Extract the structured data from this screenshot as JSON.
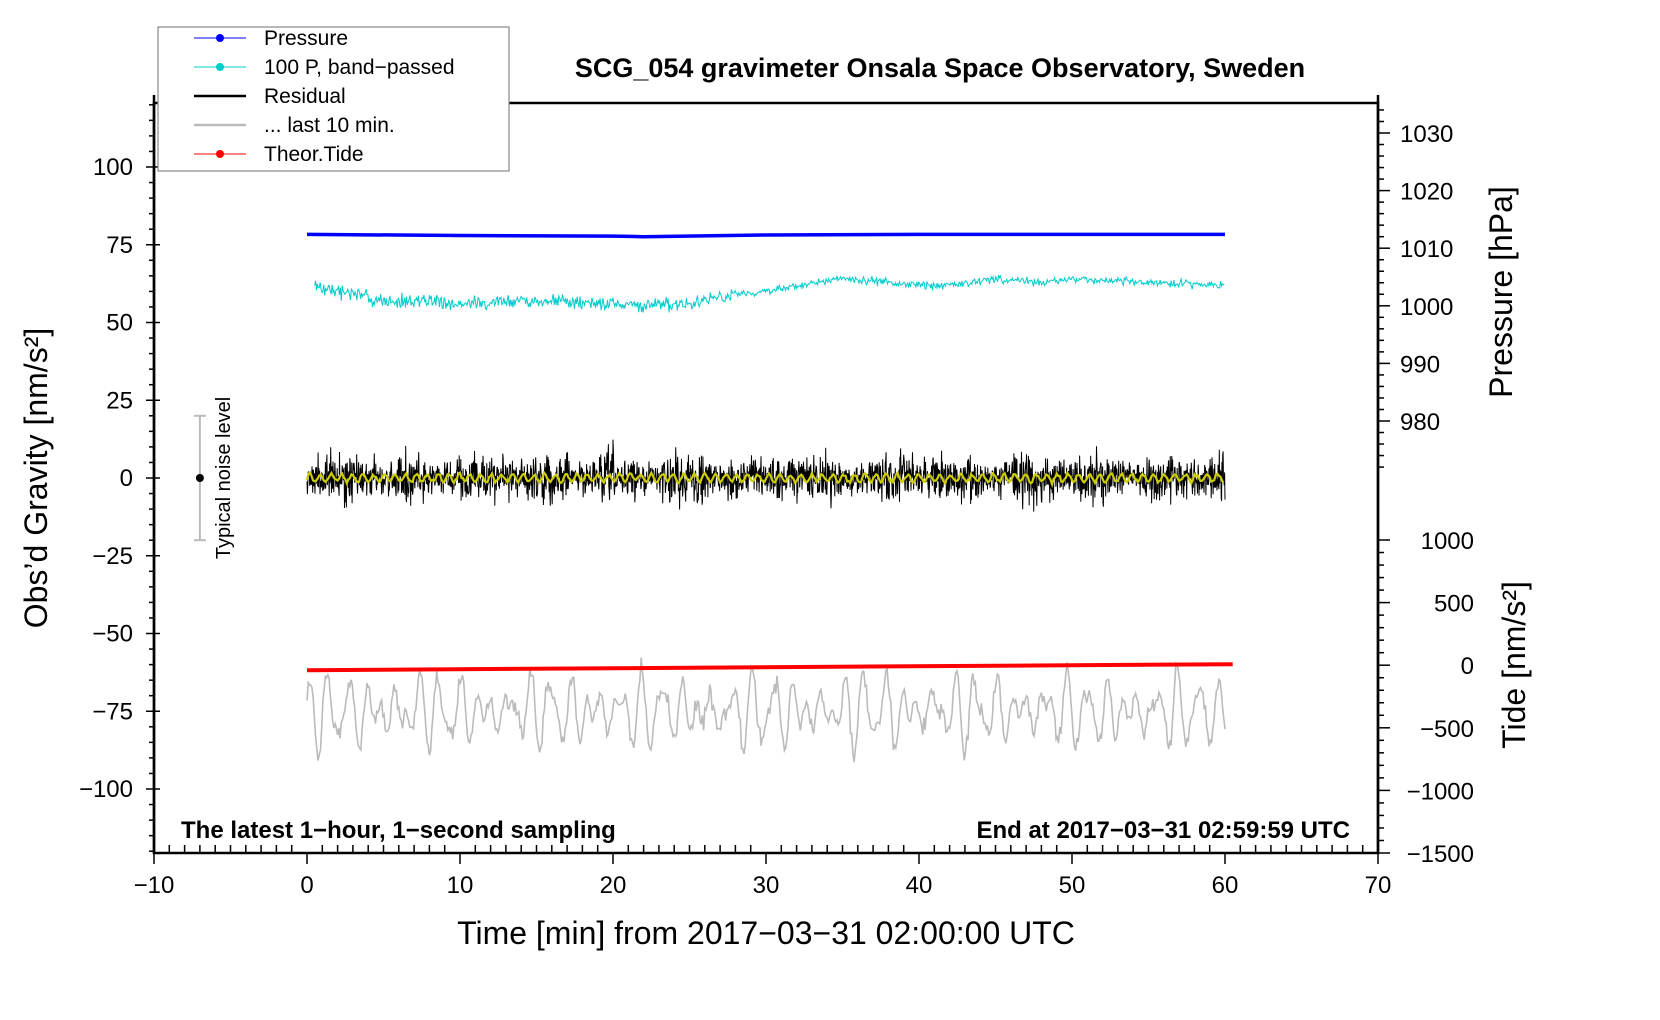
{
  "chart_data": {
    "type": "line",
    "title": "SCG_054 gravimeter Onsala Space Observatory, Sweden",
    "xlabel": "Time [min] from 2017−03−31 02:00:00 UTC",
    "ylabel_left": "Obs’d Gravity [nm/s²]",
    "ylabel_right_top": "Pressure [hPa]",
    "ylabel_right_bottom": "Tide [nm/s²]",
    "xlim": [
      -10,
      70
    ],
    "ylim_left": [
      -120,
      120
    ],
    "xticks": [
      "−10",
      "0",
      "10",
      "20",
      "30",
      "40",
      "50",
      "60",
      "70"
    ],
    "xtick_values": [
      -10,
      0,
      10,
      20,
      30,
      40,
      50,
      60,
      70
    ],
    "yticks_left": [
      "100",
      "75",
      "50",
      "25",
      "0",
      "−25",
      "−50",
      "−75",
      "−100"
    ],
    "ytick_left_values": [
      100,
      75,
      50,
      25,
      0,
      -25,
      -50,
      -75,
      -100
    ],
    "yticks_pressure": [
      "1030",
      "1020",
      "1010",
      "1000",
      "990",
      "980"
    ],
    "ytick_pressure_values": [
      1030,
      1020,
      1010,
      1000,
      990,
      980
    ],
    "yticks_tide": [
      "1000",
      "500",
      "0",
      "−500",
      "−1000",
      "−1500"
    ],
    "ytick_tide_values": [
      1000,
      500,
      0,
      -500,
      -1000,
      -1500
    ],
    "annotation_left": "The latest 1−hour, 1−second sampling",
    "annotation_right": "End at 2017−03−31 02:59:59 UTC",
    "noise_label": "Typical noise level",
    "noise_bar": {
      "x": -7,
      "low": -20,
      "high": 20
    },
    "legend": {
      "placement": "top-left",
      "entries": [
        {
          "label": "Pressure",
          "color": "#0000ff",
          "marker": true
        },
        {
          "label": "100 P, band−passed",
          "color": "#00cccc",
          "marker": true
        },
        {
          "label": "Residual",
          "color": "#000000",
          "marker": false
        },
        {
          "label": "... last 10 min.",
          "color": "#bbbbbb",
          "marker": false
        },
        {
          "label": "Theor.Tide",
          "color": "#ff0000",
          "marker": true
        }
      ]
    },
    "series": [
      {
        "name": "Pressure",
        "axis": "pressure_hPa",
        "color": "#0000ff",
        "x": [
          0,
          10,
          20,
          22,
          30,
          40,
          50,
          60
        ],
        "values": [
          1012.4,
          1012.2,
          1012.1,
          1012.0,
          1012.3,
          1012.4,
          1012.4,
          1012.4
        ]
      },
      {
        "name": "100 P, band-passed",
        "axis": "gravity",
        "color": "#00cccc",
        "x": [
          0,
          2,
          5,
          8,
          10,
          13,
          16,
          20,
          22,
          25,
          28,
          30,
          32,
          35,
          38,
          40,
          42,
          45,
          48,
          50,
          55,
          60
        ],
        "values": [
          62,
          60,
          57,
          57,
          56,
          57,
          57,
          56,
          55,
          56,
          59,
          60,
          62,
          64,
          63,
          62,
          62,
          64,
          63,
          64,
          63,
          62
        ]
      },
      {
        "name": "Residual",
        "axis": "gravity",
        "color": "#000000",
        "x_range": [
          0,
          60
        ],
        "mean": 0,
        "typical_amplitude": 10,
        "max": 23,
        "min": -19
      },
      {
        "name": "Residual smoothed",
        "axis": "gravity",
        "color": "#cccc00",
        "x_range": [
          0,
          60
        ],
        "mean": 0,
        "typical_amplitude": 2
      },
      {
        "name": "... last 10 min.",
        "axis": "gravity",
        "color": "#bbbbbb",
        "x_range": [
          0,
          60
        ],
        "mean": -75,
        "min": -92,
        "max": -57
      },
      {
        "name": "Theor.Tide",
        "axis": "tide_nm_s2",
        "color": "#ff0000",
        "x": [
          0,
          60.5
        ],
        "values": [
          -40,
          8
        ]
      }
    ]
  }
}
